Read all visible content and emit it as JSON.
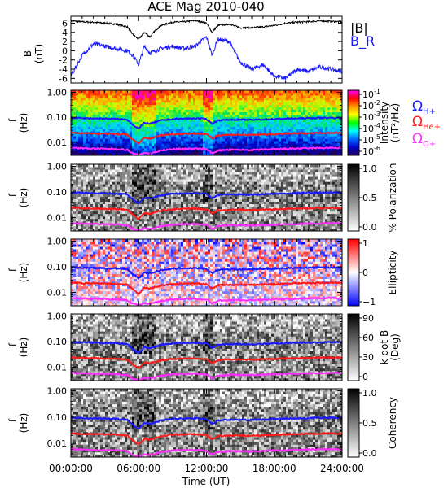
{
  "title": "ACE Mag 2010-040",
  "x_axis": {
    "label": "Time (UT)",
    "range_hours": [
      0,
      24
    ],
    "tick_hours": [
      0,
      6,
      12,
      18,
      24
    ],
    "tick_labels": [
      "00:00:00",
      "06:00:00",
      "12:00:00",
      "18:00:00",
      "24:00:00"
    ]
  },
  "freq_axis": {
    "label_f": "f",
    "label_unit": "(Hz)",
    "scale": "log",
    "range_hz": [
      0.003,
      1.2
    ],
    "ticks": [
      1.0,
      0.1,
      0.01
    ],
    "tick_labels": [
      "1.00",
      "0.10",
      "0.01"
    ]
  },
  "cyclotron_lines": [
    {
      "name": "H+",
      "symbol": "Ω",
      "label_sub": "H+",
      "color": "#1a1aff"
    },
    {
      "name": "He+",
      "symbol": "Ω",
      "label_sub": "He+",
      "color": "#ff1a1a"
    },
    {
      "name": "O+",
      "symbol": "Ω",
      "label_sub": "O+",
      "color": "#ff2cff"
    }
  ],
  "panel_labels": [
    "Intensity",
    "% Polarization",
    "Ellipticity",
    "k dot B",
    "Coherency"
  ],
  "colorbars": [
    {
      "panel": "intensity",
      "title": "Intensity",
      "units": "(nT²/Hz)",
      "scheme": "rainbow",
      "ticks": [
        {
          "base": "10",
          "exp": "-1"
        },
        {
          "base": "10",
          "exp": "-2"
        },
        {
          "base": "10",
          "exp": "-3"
        },
        {
          "base": "10",
          "exp": "-4"
        },
        {
          "base": "10",
          "exp": "-5"
        },
        {
          "base": "10",
          "exp": "-6"
        }
      ]
    },
    {
      "panel": "polarization",
      "title": "% Polarization",
      "units": "",
      "scheme": "gray",
      "ticks": [
        "1.0",
        "0.5",
        "0.0"
      ]
    },
    {
      "panel": "ellipticity",
      "title": "Ellipticity",
      "units": "",
      "scheme": "bwr",
      "ticks": [
        "1",
        "0",
        "−1"
      ]
    },
    {
      "panel": "kdotb",
      "title": "k dot B",
      "units": "(Deg)",
      "scheme": "gray",
      "ticks": [
        "90",
        "60",
        "30",
        "0"
      ]
    },
    {
      "panel": "coherency",
      "title": "Coherency",
      "units": "",
      "scheme": "gray",
      "ticks": [
        "1.0",
        "0.5",
        "0.0"
      ]
    }
  ],
  "chart_data": [
    {
      "type": "line",
      "panel": "B",
      "ylabel": "B",
      "yunit": "(nT)",
      "ylim": [
        -7,
        7.5
      ],
      "yticks": [
        6,
        4,
        2,
        0,
        -2,
        -4,
        -6
      ],
      "x": [
        0,
        1,
        2,
        3,
        4,
        5,
        5.5,
        6,
        6.5,
        7,
        7.5,
        8,
        9,
        10,
        11,
        12,
        12.5,
        13,
        14,
        15,
        16,
        17,
        18,
        19,
        20,
        21,
        22,
        23,
        24
      ],
      "series": [
        {
          "name": "|B|",
          "color": "#000000",
          "values": [
            6.5,
            6.3,
            6.2,
            6.0,
            5.8,
            5.2,
            3.5,
            2.5,
            4.0,
            3.0,
            4.5,
            5.5,
            6.2,
            6.3,
            6.6,
            6.0,
            4.0,
            5.5,
            5.8,
            5.0,
            5.0,
            5.2,
            5.5,
            6.0,
            6.2,
            6.3,
            6.5,
            6.4,
            6.3
          ]
        },
        {
          "name": "B_R",
          "color": "#1a1aff",
          "values": [
            -5.5,
            -1.0,
            1.5,
            1.0,
            0.5,
            0.0,
            -1.0,
            -3.0,
            1.0,
            -0.5,
            0.0,
            0.5,
            1.0,
            0.5,
            1.0,
            3.0,
            -1.0,
            2.5,
            2.0,
            -2.5,
            -4.0,
            -3.0,
            -5.5,
            -6.0,
            -4.0,
            -4.5,
            -3.5,
            -4.0,
            -4.5
          ]
        }
      ]
    },
    {
      "type": "line",
      "panel": "cyclotron_frequencies",
      "ylabel": "f (Hz)",
      "yscale": "log",
      "ylim": [
        0.003,
        1.2
      ],
      "x": [
        0,
        1,
        2,
        3,
        4,
        5,
        5.5,
        6,
        6.5,
        7,
        8,
        9,
        10,
        11,
        12,
        12.5,
        13,
        14,
        15,
        16,
        17,
        18,
        19,
        20,
        21,
        22,
        23,
        24
      ],
      "series": [
        {
          "name": "H+",
          "color": "#1a1aff",
          "values": [
            0.095,
            0.092,
            0.09,
            0.088,
            0.086,
            0.08,
            0.05,
            0.035,
            0.06,
            0.055,
            0.075,
            0.085,
            0.088,
            0.09,
            0.085,
            0.055,
            0.075,
            0.08,
            0.08,
            0.078,
            0.082,
            0.085,
            0.088,
            0.09,
            0.092,
            0.094,
            0.095,
            0.094
          ]
        },
        {
          "name": "He+",
          "color": "#ff1a1a",
          "values": [
            0.024,
            0.023,
            0.0225,
            0.022,
            0.0215,
            0.02,
            0.0125,
            0.009,
            0.015,
            0.014,
            0.019,
            0.021,
            0.022,
            0.0225,
            0.021,
            0.014,
            0.019,
            0.02,
            0.02,
            0.0195,
            0.0205,
            0.021,
            0.022,
            0.0225,
            0.023,
            0.0235,
            0.024,
            0.0235
          ]
        },
        {
          "name": "O+",
          "color": "#ff2cff",
          "values": [
            0.006,
            0.0058,
            0.0056,
            0.0055,
            0.0054,
            0.005,
            0.0035,
            0.0032,
            0.0038,
            0.0035,
            0.0047,
            0.0053,
            0.0055,
            0.0056,
            0.0053,
            0.0036,
            0.0047,
            0.005,
            0.005,
            0.0049,
            0.0051,
            0.0053,
            0.0055,
            0.0056,
            0.0058,
            0.0059,
            0.006,
            0.0059
          ]
        }
      ]
    },
    {
      "type": "heatmap",
      "panel": "intensity",
      "zscale": "log",
      "zlim": [
        1e-06,
        0.1
      ],
      "ylabel": "f (Hz)"
    },
    {
      "type": "heatmap",
      "panel": "polarization",
      "zlim": [
        0,
        1
      ],
      "ylabel": "f (Hz)"
    },
    {
      "type": "heatmap",
      "panel": "ellipticity",
      "zlim": [
        -1,
        1
      ],
      "ylabel": "f (Hz)"
    },
    {
      "type": "heatmap",
      "panel": "kdotb",
      "zlim": [
        0,
        90
      ],
      "ylabel": "f (Hz)"
    },
    {
      "type": "heatmap",
      "panel": "coherency",
      "zlim": [
        0,
        1
      ],
      "ylabel": "f (Hz)"
    }
  ]
}
